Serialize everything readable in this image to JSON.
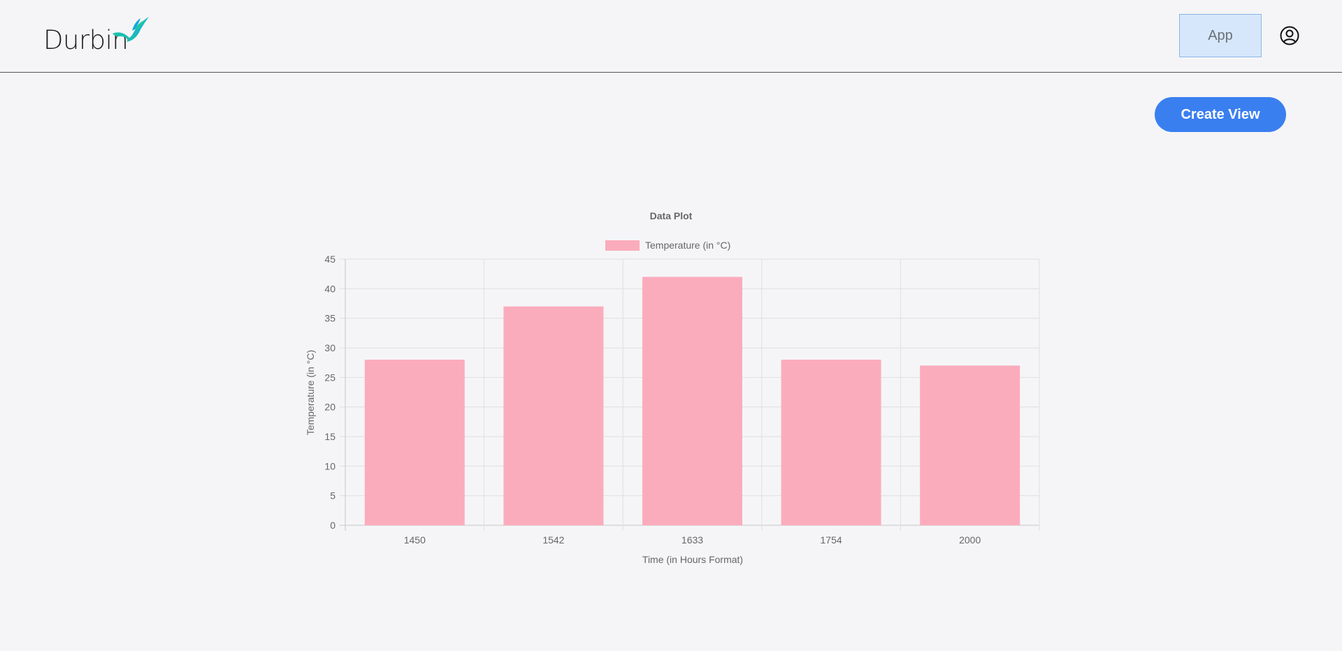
{
  "header": {
    "logo_text": "Durbin",
    "app_button_label": "App",
    "user_icon": "user-circle-icon"
  },
  "toolbar": {
    "create_view_label": "Create View"
  },
  "colors": {
    "accent": "#3a7ff0",
    "app_button_bg": "#d7e7fb",
    "bar_fill": "#fbacbc",
    "logo_gradient_start": "#16a8d9",
    "logo_gradient_end": "#1ec7a5"
  },
  "chart_data": {
    "type": "bar",
    "title": "Data Plot",
    "categories": [
      "1450",
      "1542",
      "1633",
      "1754",
      "2000"
    ],
    "series": [
      {
        "name": "Temperature (in °C)",
        "values": [
          28,
          37,
          42,
          28,
          27
        ]
      }
    ],
    "xlabel": "Time (in Hours Format)",
    "ylabel": "Temperature (in °C)",
    "ylim": [
      0,
      45
    ],
    "yticks": [
      0,
      5,
      10,
      15,
      20,
      25,
      30,
      35,
      40,
      45
    ],
    "grid": true,
    "legend_position": "top"
  }
}
